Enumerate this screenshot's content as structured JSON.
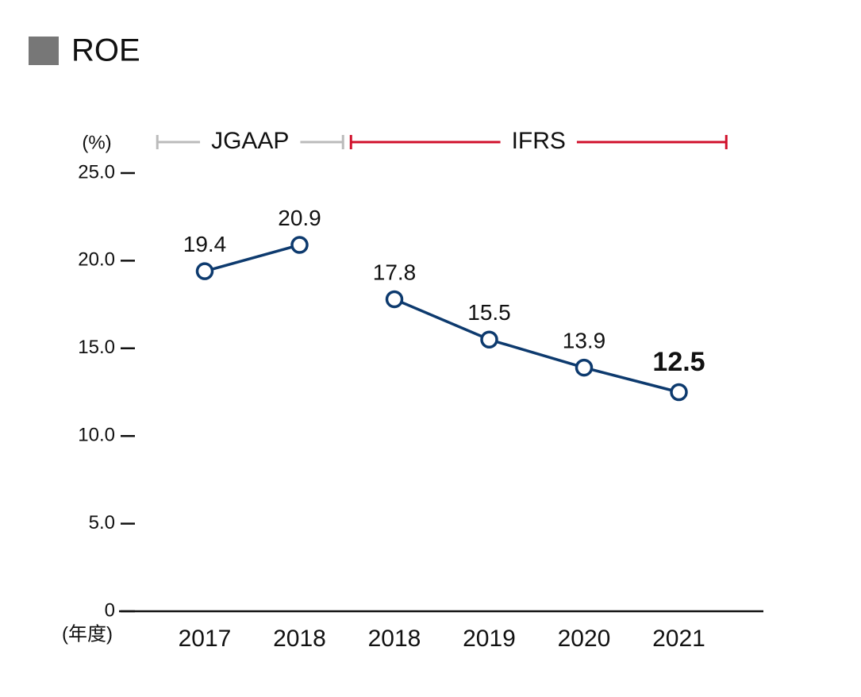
{
  "chart_data": {
    "type": "line",
    "title": "ROE",
    "y_label": "(%)",
    "x_label": "(年度)",
    "categories": [
      "2017",
      "2018",
      "2018",
      "2019",
      "2020",
      "2021"
    ],
    "series": [
      {
        "name": "JGAAP",
        "color": "#0d3a6e",
        "bracket_color": "#bbbbbb",
        "values": [
          19.4,
          20.9,
          null,
          null,
          null,
          null
        ]
      },
      {
        "name": "IFRS",
        "color": "#0d3a6e",
        "bracket_color": "#d0102b",
        "values": [
          null,
          null,
          17.8,
          15.5,
          13.9,
          12.5
        ]
      }
    ],
    "ylim": [
      0,
      25
    ],
    "yticks": [
      0,
      {
        "value": 5,
        "label": "5.0"
      },
      {
        "value": 10,
        "label": "10.0"
      },
      {
        "value": 15,
        "label": "15.0"
      },
      {
        "value": 20,
        "label": "20.0"
      },
      {
        "value": 25,
        "label": "25.0"
      }
    ]
  }
}
